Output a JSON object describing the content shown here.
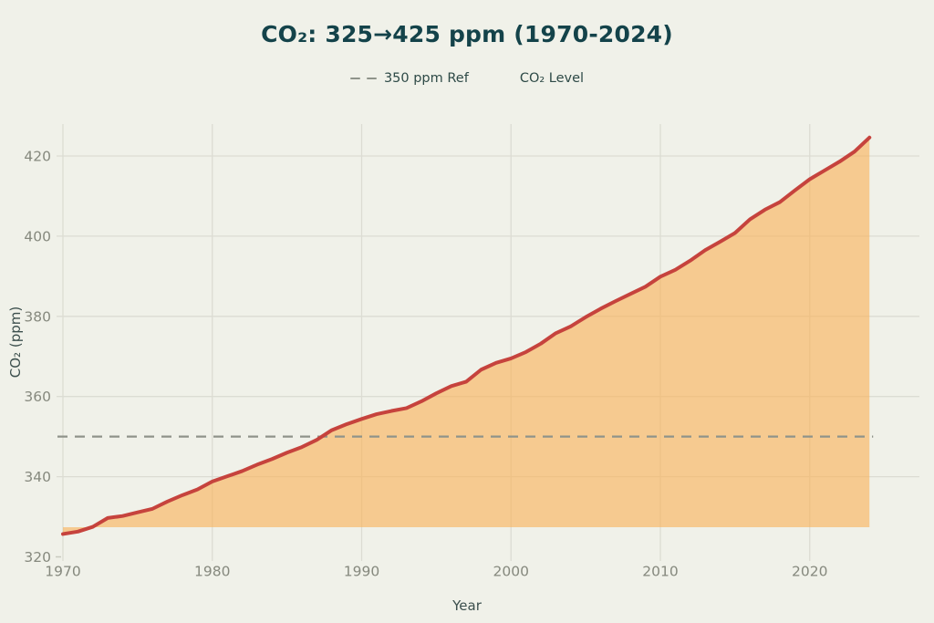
{
  "page": {
    "background_color": "#f0f1e9"
  },
  "chart_data": {
    "type": "area",
    "title": "CO₂: 325→425 ppm (1970-2024)",
    "xlabel": "Year",
    "ylabel": "CO₂ (ppm)",
    "legend_position": "top-center",
    "grid": true,
    "legend": [
      {
        "label": "350 ppm Ref",
        "style": "dashed-line",
        "color": "#8f938a"
      },
      {
        "label": "CO₂ Level",
        "style": "line-with-area",
        "line_color": "#c6433d",
        "fill_color": "#f6ca90"
      }
    ],
    "reference_line": {
      "label": "350 ppm Ref",
      "value": 350
    },
    "x_ticks": [
      1970,
      1980,
      1990,
      2000,
      2010,
      2020
    ],
    "y_ticks": [
      320,
      340,
      360,
      380,
      400,
      420
    ],
    "xlim": [
      1969.5,
      2027.4
    ],
    "ylim": [
      320,
      428
    ],
    "fill_baseline": 327.4,
    "x": [
      1970,
      1971,
      1972,
      1973,
      1974,
      1975,
      1976,
      1977,
      1978,
      1979,
      1980,
      1981,
      1982,
      1983,
      1984,
      1985,
      1986,
      1987,
      1988,
      1989,
      1990,
      1991,
      1992,
      1993,
      1994,
      1995,
      1996,
      1997,
      1998,
      1999,
      2000,
      2001,
      2002,
      2003,
      2004,
      2005,
      2006,
      2007,
      2008,
      2009,
      2010,
      2011,
      2012,
      2013,
      2014,
      2015,
      2016,
      2017,
      2018,
      2019,
      2020,
      2021,
      2022,
      2023,
      2024
    ],
    "series": [
      {
        "name": "CO₂ Level",
        "values": [
          325.7,
          326.3,
          327.5,
          329.7,
          330.2,
          331.1,
          332.0,
          333.8,
          335.4,
          336.8,
          338.8,
          340.1,
          341.4,
          343.0,
          344.4,
          346.0,
          347.4,
          349.2,
          351.6,
          353.1,
          354.4,
          355.6,
          356.4,
          357.1,
          358.8,
          360.8,
          362.6,
          363.7,
          366.7,
          368.4,
          369.5,
          371.1,
          373.2,
          375.8,
          377.5,
          379.8,
          381.9,
          383.8,
          385.6,
          387.4,
          389.9,
          391.6,
          393.9,
          396.5,
          398.6,
          400.8,
          404.2,
          406.6,
          408.5,
          411.4,
          414.2,
          416.4,
          418.6,
          421.1,
          424.6
        ]
      }
    ],
    "colors": {
      "line": "#c6433d",
      "fill_overlay": "rgba(250,176,85,0.60)",
      "fill_flat": "#f6ca90",
      "reference": "#8f938a",
      "grid": "#dcdcd3",
      "background": "#f0f1e9",
      "title": "#14434a",
      "tick_labels": "#86897e",
      "axis_labels": "#3c4f4d"
    }
  }
}
